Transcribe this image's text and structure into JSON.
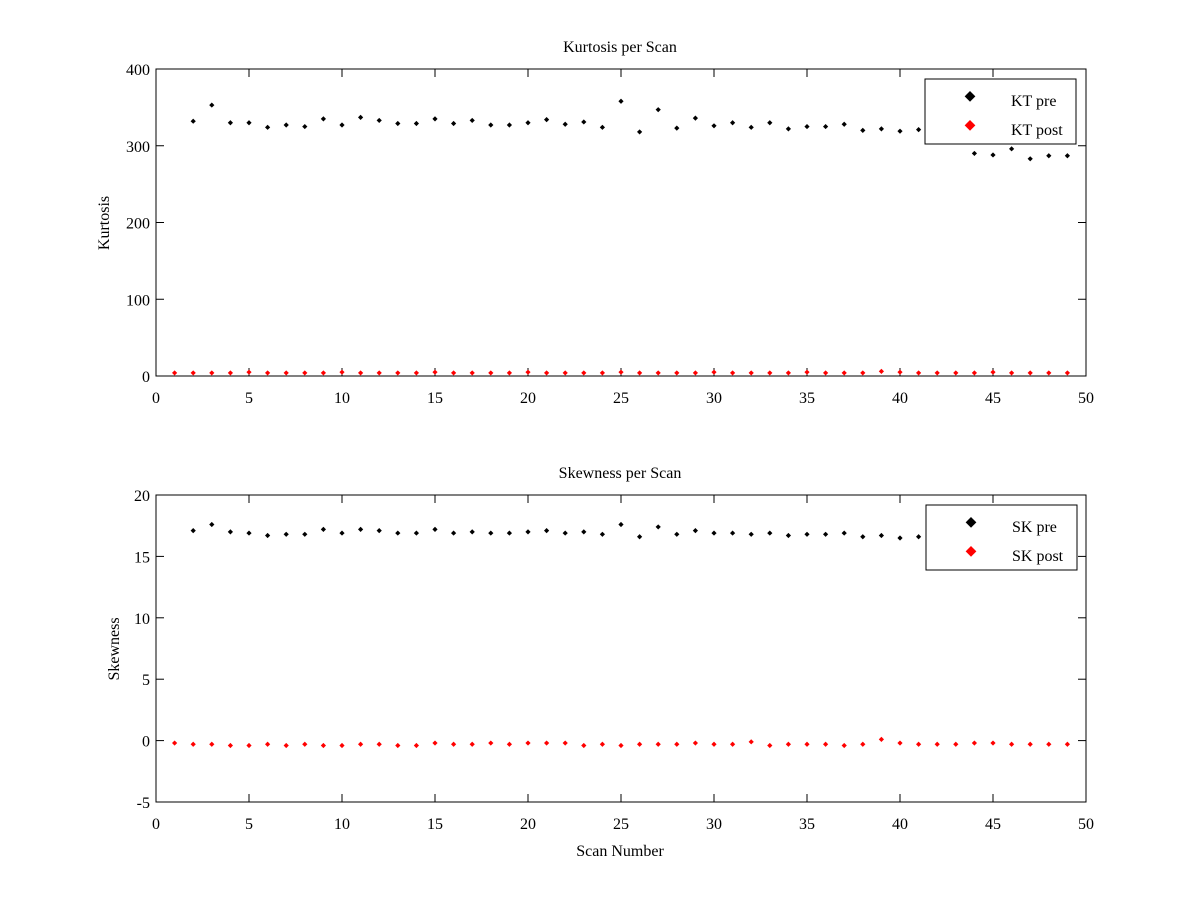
{
  "chart_data": [
    {
      "type": "scatter",
      "title": "Kurtosis per Scan",
      "xlabel": "",
      "ylabel": "Kurtosis",
      "xlim": [
        0,
        50
      ],
      "ylim": [
        0,
        400
      ],
      "xticks": [
        0,
        5,
        10,
        15,
        20,
        25,
        30,
        35,
        40,
        45,
        50
      ],
      "yticks": [
        0,
        100,
        200,
        300,
        400
      ],
      "grid": false,
      "legend_position": "top-right",
      "x": [
        1,
        2,
        3,
        4,
        5,
        6,
        7,
        8,
        9,
        10,
        11,
        12,
        13,
        14,
        15,
        16,
        17,
        18,
        19,
        20,
        21,
        22,
        23,
        24,
        25,
        26,
        27,
        28,
        29,
        30,
        31,
        32,
        33,
        34,
        35,
        36,
        37,
        38,
        39,
        40,
        41,
        42,
        43,
        44,
        45,
        46,
        47,
        48,
        49
      ],
      "series": [
        {
          "name": "KT pre",
          "color": "#000000",
          "x": [
            2,
            3,
            4,
            5,
            6,
            7,
            8,
            9,
            10,
            11,
            12,
            13,
            14,
            15,
            16,
            17,
            18,
            19,
            20,
            21,
            22,
            23,
            24,
            25,
            26,
            27,
            28,
            29,
            30,
            31,
            32,
            33,
            34,
            35,
            36,
            37,
            38,
            39,
            40,
            41,
            42,
            43,
            44,
            45,
            46,
            47,
            48,
            49
          ],
          "values": [
            332,
            353,
            330,
            330,
            324,
            327,
            325,
            335,
            327,
            337,
            333,
            329,
            329,
            335,
            329,
            333,
            327,
            327,
            330,
            334,
            328,
            331,
            324,
            358,
            318,
            347,
            323,
            336,
            326,
            330,
            324,
            330,
            322,
            325,
            325,
            328,
            320,
            322,
            319,
            321,
            318,
            315,
            290,
            288,
            296,
            283,
            287,
            287
          ]
        },
        {
          "name": "KT post",
          "color": "#ff0000",
          "values": [
            4,
            4,
            4,
            4,
            5,
            4,
            4,
            4,
            4,
            5,
            4,
            4,
            4,
            4,
            5,
            4,
            4,
            4,
            4,
            5,
            4,
            4,
            4,
            4,
            5,
            4,
            4,
            4,
            4,
            5,
            4,
            4,
            4,
            4,
            5,
            4,
            4,
            4,
            6,
            5,
            4,
            4,
            4,
            4,
            5,
            4,
            4,
            4,
            4
          ]
        }
      ]
    },
    {
      "type": "scatter",
      "title": "Skewness per Scan",
      "xlabel": "Scan Number",
      "ylabel": "Skewness",
      "xlim": [
        0,
        50
      ],
      "ylim": [
        -5,
        20
      ],
      "xticks": [
        0,
        5,
        10,
        15,
        20,
        25,
        30,
        35,
        40,
        45,
        50
      ],
      "yticks": [
        -5,
        0,
        5,
        10,
        15,
        20
      ],
      "grid": false,
      "legend_position": "top-right",
      "x": [
        1,
        2,
        3,
        4,
        5,
        6,
        7,
        8,
        9,
        10,
        11,
        12,
        13,
        14,
        15,
        16,
        17,
        18,
        19,
        20,
        21,
        22,
        23,
        24,
        25,
        26,
        27,
        28,
        29,
        30,
        31,
        32,
        33,
        34,
        35,
        36,
        37,
        38,
        39,
        40,
        41,
        42,
        43,
        44,
        45,
        46,
        47,
        48,
        49
      ],
      "series": [
        {
          "name": "SK pre",
          "color": "#000000",
          "x": [
            2,
            3,
            4,
            5,
            6,
            7,
            8,
            9,
            10,
            11,
            12,
            13,
            14,
            15,
            16,
            17,
            18,
            19,
            20,
            21,
            22,
            23,
            24,
            25,
            26,
            27,
            28,
            29,
            30,
            31,
            32,
            33,
            34,
            35,
            36,
            37,
            38,
            39,
            40,
            41,
            42,
            43,
            44,
            45,
            46,
            47,
            48,
            49
          ],
          "values": [
            17.1,
            17.6,
            17.0,
            16.9,
            16.7,
            16.8,
            16.8,
            17.2,
            16.9,
            17.2,
            17.1,
            16.9,
            16.9,
            17.2,
            16.9,
            17.0,
            16.9,
            16.9,
            17.0,
            17.1,
            16.9,
            17.0,
            16.8,
            17.6,
            16.6,
            17.4,
            16.8,
            17.1,
            16.9,
            16.9,
            16.8,
            16.9,
            16.7,
            16.8,
            16.8,
            16.9,
            16.6,
            16.7,
            16.5,
            16.6,
            16.5,
            16.4,
            16.0,
            16.0,
            16.1,
            15.9,
            16.0,
            16.0
          ]
        },
        {
          "name": "SK post",
          "color": "#ff0000",
          "values": [
            -0.2,
            -0.3,
            -0.3,
            -0.4,
            -0.4,
            -0.3,
            -0.4,
            -0.3,
            -0.4,
            -0.4,
            -0.3,
            -0.3,
            -0.4,
            -0.4,
            -0.2,
            -0.3,
            -0.3,
            -0.2,
            -0.3,
            -0.2,
            -0.2,
            -0.2,
            -0.4,
            -0.3,
            -0.4,
            -0.3,
            -0.3,
            -0.3,
            -0.2,
            -0.3,
            -0.3,
            -0.1,
            -0.4,
            -0.3,
            -0.3,
            -0.3,
            -0.4,
            -0.3,
            0.1,
            -0.2,
            -0.3,
            -0.3,
            -0.3,
            -0.2,
            -0.2,
            -0.3,
            -0.3,
            -0.3,
            -0.3
          ]
        }
      ]
    }
  ]
}
